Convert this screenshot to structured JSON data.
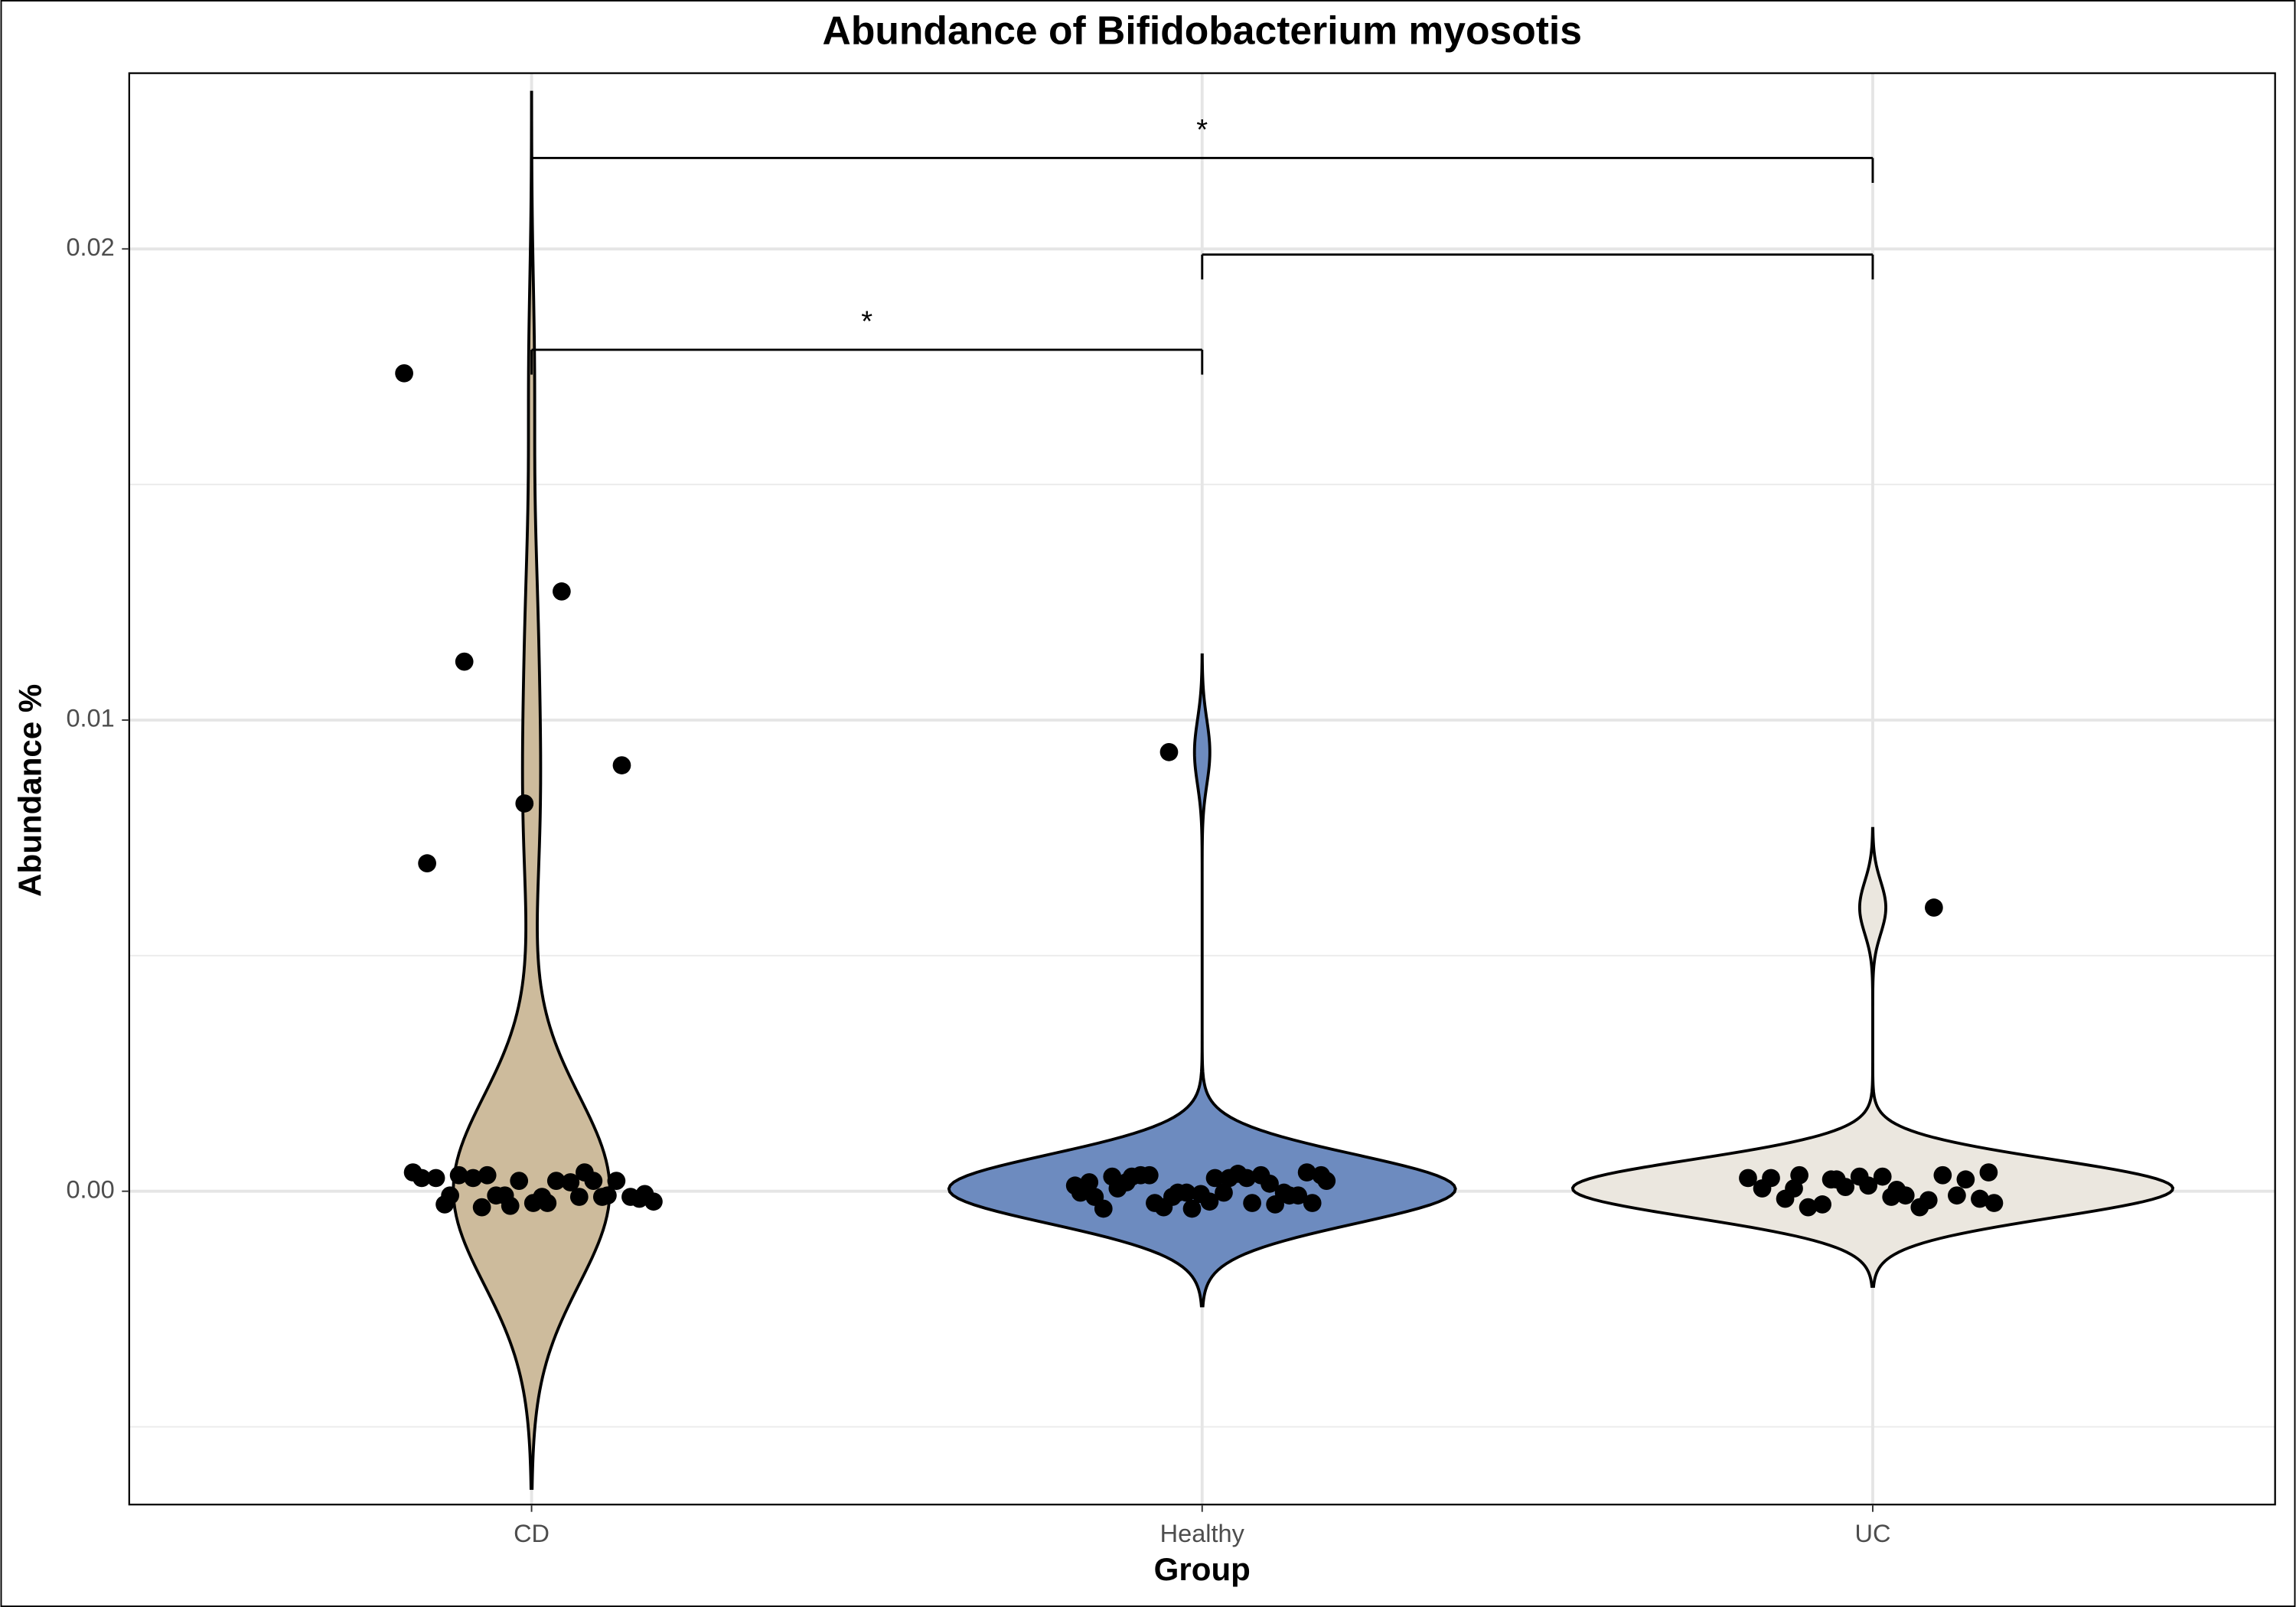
{
  "chart_data": {
    "type": "violin",
    "title": "Abundance of Bifidobacterium myosotis",
    "x_label": "Group",
    "y_label": "Abundance %",
    "categories": [
      "CD",
      "Healthy",
      "UC"
    ],
    "colors": [
      "#cdbb9c",
      "#6d8bbf",
      "#ebe7df"
    ],
    "values": [
      [
        0.01736,
        0.01273,
        0.01124,
        0.00904,
        0.00823,
        0.00696,
        0.0004,
        0.00034,
        -6e-05,
        -0.00025,
        -9e-05,
        -9e-05,
        -0.00031,
        0.0004,
        0.00019,
        0.00028,
        -0.00012,
        -0.00025,
        0.00028,
        0.00022,
        -9e-05,
        -0.00022,
        0.00022,
        0.00034,
        0.00022,
        0.00022,
        0.00028,
        -0.00012,
        -0.00034,
        -0.00016,
        -0.00012,
        -0.00028,
        -0.00012,
        -9e-05
      ],
      [
        0.00932,
        0.00022,
        0.00028,
        0.00031,
        -9e-05,
        -0.00037,
        -0.00012,
        -0.00025,
        -0.00025,
        -0.00025,
        0.00028,
        6e-05,
        -0.00028,
        -3e-05,
        -3e-05,
        0.00037,
        0.00034,
        -9e-05,
        -6e-05,
        -0.00037,
        0.00034,
        -0.00034,
        0.00034,
        -3e-05,
        0.00019,
        -3e-05,
        -3e-05,
        0.00019,
        0.00028,
        0.00034,
        0.0004,
        -0.00022,
        0.00031,
        0.00016,
        -0.00012,
        0.00012
      ],
      [
        0.00602,
        0.00025,
        -0.00025,
        3e-05,
        0.00034,
        -9e-05,
        0.00031,
        6e-05,
        -0.00034,
        -0.00028,
        -0.00016,
        0.00031,
        -0.00016,
        0.00034,
        9e-05,
        0.00028,
        -9e-05,
        -0.00034,
        0.00025,
        0.00012,
        0.00028,
        -0.00019,
        0.00025,
        0.0004,
        -0.00012,
        6e-05
      ]
    ],
    "comparisons": [
      {
        "groups": [
          "CD",
          "UC"
        ],
        "y": 0.02193,
        "label": "*"
      },
      {
        "groups": [
          "Healthy",
          "UC"
        ],
        "y": 0.01988
      },
      {
        "groups": [
          "CD",
          "Healthy"
        ],
        "y": 0.01786,
        "label": "*"
      }
    ],
    "ylim": [
      -0.00665,
      0.02373
    ],
    "yticks": [
      {
        "value": 0,
        "label": "0.00"
      },
      {
        "value": 0.01,
        "label": "0.01"
      },
      {
        "value": 0.02,
        "label": "0.02"
      }
    ],
    "minor_yticks": [
      -0.005,
      0.005,
      0.015
    ],
    "grid": true
  }
}
